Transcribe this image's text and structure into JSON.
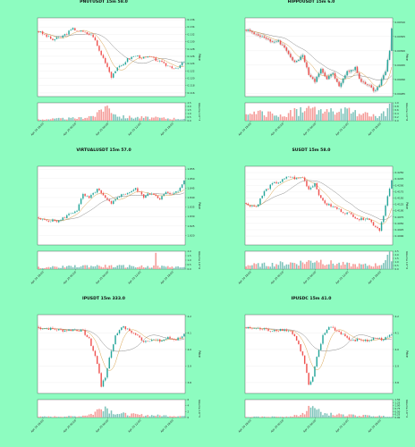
{
  "colors": {
    "background": "#8dfcc0",
    "up": "#26a69a",
    "down": "#ef5350",
    "volume_up": "#7fc4bb",
    "volume_down": "#f49b98",
    "ma_short": "#d9a24c",
    "ma_long": "#8a8a8a",
    "band_fill": "#d3d3d3"
  },
  "chart_data": [
    {
      "type": "candlestick",
      "title": "PNUTUSDT 15m 58.0",
      "ylabel": "Price",
      "volume_label": "Volume 10^7",
      "ylim": [
        0.115,
        0.1365
      ],
      "yticks": [
        "0.136",
        "0.134",
        "0.132",
        "0.130",
        "0.128",
        "0.126",
        "0.124",
        "0.122",
        "0.120",
        "0.118",
        "0.116"
      ],
      "volume_ticks": [
        "2.5",
        "2.0",
        "1.5",
        "1.0",
        "0.5",
        "0.0"
      ],
      "xticks": [
        "Apr 24 18:00",
        "Apr 25 00:00",
        "Apr 25 06:00",
        "Apr 25 12:00",
        "Apr 25 18:00"
      ],
      "keypoints": [
        [
          0,
          0.1328
        ],
        [
          3,
          0.1318
        ],
        [
          7,
          0.1305
        ],
        [
          11,
          0.1312
        ],
        [
          14,
          0.1323
        ],
        [
          17,
          0.1335
        ],
        [
          21,
          0.1328
        ],
        [
          24,
          0.1322
        ],
        [
          27,
          0.1315
        ],
        [
          30,
          0.1275
        ],
        [
          33,
          0.1245
        ],
        [
          36,
          0.1205
        ],
        [
          38,
          0.1222
        ],
        [
          41,
          0.1235
        ],
        [
          44,
          0.1252
        ],
        [
          48,
          0.1262
        ],
        [
          52,
          0.1255
        ],
        [
          55,
          0.1258
        ],
        [
          59,
          0.1248
        ],
        [
          62,
          0.1238
        ],
        [
          65,
          0.1232
        ],
        [
          68,
          0.1228
        ],
        [
          70,
          0.1236
        ],
        [
          72,
          0.1244
        ]
      ],
      "vol_keypoints": [
        [
          0,
          0.2
        ],
        [
          20,
          0.4
        ],
        [
          29,
          0.9
        ],
        [
          31,
          1.9
        ],
        [
          33,
          2.3
        ],
        [
          36,
          1.8
        ],
        [
          40,
          0.6
        ],
        [
          55,
          0.45
        ],
        [
          72,
          0.3
        ]
      ],
      "vol_max": 2.8,
      "has_band": false
    },
    {
      "type": "candlestick",
      "title": "HIPPOUSDT 15m 6.0",
      "ylabel": "Price",
      "volume_label": "Volume 10^8",
      "ylim": [
        0.00284,
        0.003115
      ],
      "yticks": [
        "0.00310",
        "0.00305",
        "0.00300",
        "0.00295",
        "0.00290",
        "0.00285"
      ],
      "volume_ticks": [
        "1.0",
        "0.8",
        "0.6",
        "0.4",
        "0.2",
        "0.0"
      ],
      "xticks": [
        "Apr 24 18:00",
        "Apr 25 00:00",
        "Apr 25 06:00",
        "Apr 25 12:00",
        "Apr 25 18:00"
      ],
      "keypoints": [
        [
          0,
          0.003075
        ],
        [
          4,
          0.00306
        ],
        [
          8,
          0.00305
        ],
        [
          12,
          0.00303
        ],
        [
          16,
          0.003035
        ],
        [
          20,
          0.003
        ],
        [
          24,
          0.00296
        ],
        [
          28,
          0.00298
        ],
        [
          31,
          0.00292
        ],
        [
          34,
          0.002895
        ],
        [
          37,
          0.002935
        ],
        [
          40,
          0.002905
        ],
        [
          43,
          0.00292
        ],
        [
          46,
          0.00288
        ],
        [
          50,
          0.002925
        ],
        [
          54,
          0.00294
        ],
        [
          57,
          0.00289
        ],
        [
          60,
          0.002885
        ],
        [
          63,
          0.00286
        ],
        [
          66,
          0.00288
        ],
        [
          69,
          0.00293
        ],
        [
          71,
          0.003
        ],
        [
          72,
          0.00308
        ]
      ],
      "vol_keypoints": [
        [
          0,
          0.3
        ],
        [
          8,
          0.45
        ],
        [
          16,
          0.3
        ],
        [
          24,
          0.5
        ],
        [
          30,
          0.65
        ],
        [
          36,
          0.6
        ],
        [
          42,
          0.5
        ],
        [
          50,
          0.55
        ],
        [
          56,
          0.45
        ],
        [
          62,
          0.3
        ],
        [
          66,
          0.2
        ],
        [
          70,
          0.6
        ],
        [
          72,
          0.9
        ]
      ],
      "vol_max": 1.05,
      "has_band": true
    },
    {
      "type": "candlestick",
      "title": "VIRTUALUSDT 15m 57.0",
      "ylabel": "Price",
      "volume_label": "Volume 10^6",
      "ylim": [
        1.815,
        1.8565
      ],
      "yticks": [
        "1.855",
        "1.850",
        "1.845",
        "1.840",
        "1.835",
        "1.830",
        "1.825",
        "1.820"
      ],
      "volume_ticks": [
        "2.0",
        "1.5",
        "1.0",
        "0.5",
        "0.0"
      ],
      "xticks": [
        "Apr 24 18:00",
        "Apr 25 00:00",
        "Apr 25 06:00",
        "Apr 25 12:00",
        "Apr 25 18:00"
      ],
      "keypoints": [
        [
          0,
          1.8285
        ],
        [
          5,
          1.828
        ],
        [
          10,
          1.8275
        ],
        [
          14,
          1.8305
        ],
        [
          19,
          1.8335
        ],
        [
          22,
          1.8415
        ],
        [
          25,
          1.8395
        ],
        [
          29,
          1.8445
        ],
        [
          33,
          1.8395
        ],
        [
          36,
          1.8365
        ],
        [
          39,
          1.8405
        ],
        [
          44,
          1.8425
        ],
        [
          48,
          1.8445
        ],
        [
          52,
          1.8405
        ],
        [
          56,
          1.8425
        ],
        [
          60,
          1.8395
        ],
        [
          63,
          1.8425
        ],
        [
          66,
          1.8415
        ],
        [
          69,
          1.8435
        ],
        [
          72,
          1.8495
        ]
      ],
      "vol_keypoints": [
        [
          0,
          0.2
        ],
        [
          15,
          0.3
        ],
        [
          25,
          0.4
        ],
        [
          35,
          0.35
        ],
        [
          45,
          0.35
        ],
        [
          55,
          0.3
        ],
        [
          65,
          0.3
        ],
        [
          72,
          0.25
        ]
      ],
      "vol_max": 2.2,
      "vol_spikes": [
        [
          58,
          2.0
        ]
      ],
      "has_band": false
    },
    {
      "type": "candlestick",
      "title": "SUSDT 15m 58.0",
      "ylabel": "Price",
      "volume_label": "Volume 10^6",
      "ylim": [
        0.3965,
        0.4275
      ],
      "yticks": [
        "0.4250",
        "0.4225",
        "0.4200",
        "0.4175",
        "0.4150",
        "0.4125",
        "0.4100",
        "0.4075",
        "0.4050",
        "0.4025",
        "0.4000"
      ],
      "volume_ticks": [
        "2.5",
        "2.0",
        "1.5",
        "1.0",
        "0.5",
        "0.0"
      ],
      "xticks": [
        "Apr 24 18:00",
        "Apr 25 00:00",
        "Apr 25 06:00",
        "Apr 25 12:00",
        "Apr 25 18:00"
      ],
      "keypoints": [
        [
          0,
          0.4125
        ],
        [
          5,
          0.4115
        ],
        [
          9,
          0.4175
        ],
        [
          13,
          0.4205
        ],
        [
          17,
          0.4215
        ],
        [
          21,
          0.4235
        ],
        [
          25,
          0.4225
        ],
        [
          28,
          0.4232
        ],
        [
          31,
          0.4185
        ],
        [
          34,
          0.4208
        ],
        [
          37,
          0.4145
        ],
        [
          40,
          0.4125
        ],
        [
          44,
          0.4112
        ],
        [
          48,
          0.4095
        ],
        [
          52,
          0.4085
        ],
        [
          56,
          0.4065
        ],
        [
          60,
          0.4072
        ],
        [
          63,
          0.4045
        ],
        [
          66,
          0.4025
        ],
        [
          68,
          0.4085
        ],
        [
          70,
          0.4155
        ],
        [
          72,
          0.4215
        ]
      ],
      "vol_keypoints": [
        [
          0,
          0.6
        ],
        [
          10,
          0.7
        ],
        [
          20,
          0.9
        ],
        [
          30,
          1.1
        ],
        [
          35,
          1.5
        ],
        [
          40,
          1.0
        ],
        [
          50,
          0.7
        ],
        [
          60,
          0.6
        ],
        [
          66,
          0.7
        ],
        [
          70,
          1.6
        ],
        [
          72,
          2.4
        ]
      ],
      "vol_max": 2.8,
      "has_band": false
    },
    {
      "type": "candlestick",
      "title": "IPUSDT 15m 333.0",
      "ylabel": "Price",
      "volume_label": "Volume 10^5",
      "ylim": [
        3.735,
        4.21
      ],
      "yticks": [
        "4.2",
        "4.1",
        "4.0",
        "3.9",
        "3.8"
      ],
      "volume_ticks": [
        "6",
        "4",
        "2",
        "0"
      ],
      "xticks": [
        "Apr 24 18:00",
        "Apr 25 00:00",
        "Apr 25 06:00",
        "Apr 25 12:00",
        "Apr 25 18:00"
      ],
      "keypoints": [
        [
          0,
          4.13
        ],
        [
          6,
          4.125
        ],
        [
          12,
          4.115
        ],
        [
          18,
          4.12
        ],
        [
          22,
          4.11
        ],
        [
          25,
          4.06
        ],
        [
          28,
          3.96
        ],
        [
          30,
          3.86
        ],
        [
          31,
          3.78
        ],
        [
          33,
          3.83
        ],
        [
          35,
          3.95
        ],
        [
          38,
          4.08
        ],
        [
          41,
          4.14
        ],
        [
          44,
          4.12
        ],
        [
          48,
          4.09
        ],
        [
          52,
          4.05
        ],
        [
          56,
          4.06
        ],
        [
          60,
          4.05
        ],
        [
          64,
          4.07
        ],
        [
          68,
          4.06
        ],
        [
          72,
          4.09
        ]
      ],
      "vol_keypoints": [
        [
          0,
          0.3
        ],
        [
          20,
          0.5
        ],
        [
          27,
          1.5
        ],
        [
          30,
          3.5
        ],
        [
          31,
          5.5
        ],
        [
          33,
          4.5
        ],
        [
          36,
          2.5
        ],
        [
          40,
          1.5
        ],
        [
          50,
          1.0
        ],
        [
          60,
          0.8
        ],
        [
          72,
          0.6
        ]
      ],
      "vol_max": 7.2,
      "has_band": false
    },
    {
      "type": "candlestick",
      "title": "IPUSDC 15m 41.0",
      "ylabel": "Price",
      "volume_label": "Volume 10^4",
      "ylim": [
        3.735,
        4.21
      ],
      "yticks": [
        "4.2",
        "4.1",
        "4.0",
        "3.9",
        "3.8"
      ],
      "volume_ticks": [
        "1.50",
        "1.25",
        "1.00",
        "0.75",
        "0.50",
        "0.25",
        "0.00"
      ],
      "xticks": [
        "Apr 24 18:00",
        "Apr 25 00:00",
        "Apr 25 06:00",
        "Apr 25 12:00",
        "Apr 25 18:00"
      ],
      "keypoints": [
        [
          0,
          4.13
        ],
        [
          6,
          4.125
        ],
        [
          12,
          4.115
        ],
        [
          18,
          4.12
        ],
        [
          22,
          4.11
        ],
        [
          25,
          4.06
        ],
        [
          28,
          3.96
        ],
        [
          30,
          3.86
        ],
        [
          31,
          3.78
        ],
        [
          33,
          3.83
        ],
        [
          35,
          3.95
        ],
        [
          38,
          4.08
        ],
        [
          41,
          4.14
        ],
        [
          44,
          4.12
        ],
        [
          48,
          4.09
        ],
        [
          52,
          4.05
        ],
        [
          56,
          4.06
        ],
        [
          60,
          4.05
        ],
        [
          64,
          4.07
        ],
        [
          68,
          4.06
        ],
        [
          72,
          4.09
        ]
      ],
      "vol_keypoints": [
        [
          0,
          0.05
        ],
        [
          20,
          0.08
        ],
        [
          27,
          0.2
        ],
        [
          30,
          0.6
        ],
        [
          31,
          1.0
        ],
        [
          33,
          0.8
        ],
        [
          36,
          0.5
        ],
        [
          40,
          0.3
        ],
        [
          50,
          0.2
        ],
        [
          60,
          0.15
        ],
        [
          72,
          0.1
        ]
      ],
      "vol_max": 1.55,
      "has_band": false
    }
  ]
}
